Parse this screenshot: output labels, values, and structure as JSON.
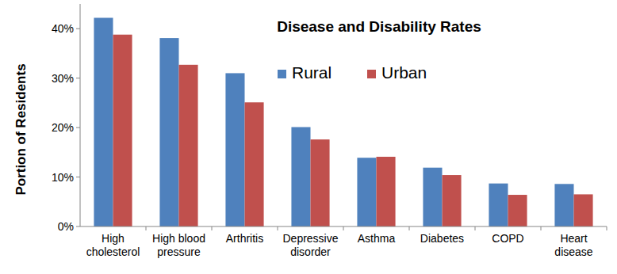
{
  "chart_data": {
    "type": "bar",
    "title": "Disease and Disability Rates",
    "y_label": "Portion of Residents",
    "categories": [
      "High cholesterol",
      "High blood pressure",
      "Arthritis",
      "Depressive disorder",
      "Asthma",
      "Diabetes",
      "COPD",
      "Heart disease"
    ],
    "series": [
      {
        "name": "Rural",
        "color": "#4f81bd",
        "values": [
          42.2,
          38.1,
          31.0,
          20.1,
          13.9,
          11.9,
          8.7,
          8.6
        ]
      },
      {
        "name": "Urban",
        "color": "#c0504d",
        "values": [
          38.8,
          32.7,
          25.1,
          17.6,
          14.1,
          10.4,
          6.4,
          6.5
        ]
      }
    ],
    "ylim": [
      0,
      45
    ],
    "yticks": [
      {
        "value": 0,
        "label": "0%"
      },
      {
        "value": 10,
        "label": "10%"
      },
      {
        "value": 20,
        "label": "20%"
      },
      {
        "value": 30,
        "label": "30%"
      },
      {
        "value": 40,
        "label": "40%"
      }
    ],
    "grid": false,
    "legend": "top"
  }
}
